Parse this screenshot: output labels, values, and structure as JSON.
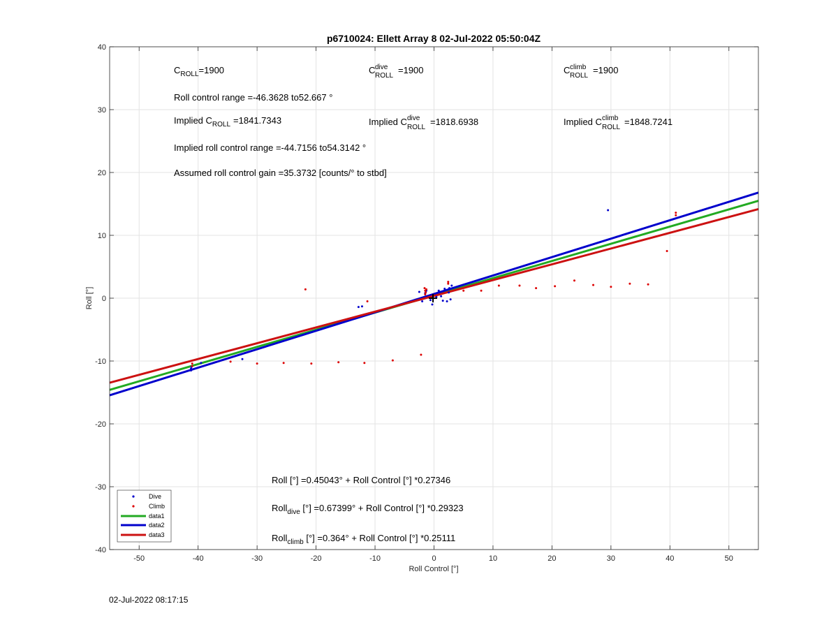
{
  "chart_data": {
    "type": "scatter",
    "title": "p6710024: Ellett Array 8 02-Jul-2022 05:50:04Z",
    "xlabel": "Roll Control [°]",
    "ylabel": "Roll [°]",
    "xlim": [
      -55,
      55
    ],
    "ylim": [
      -40,
      40
    ],
    "xticks": [
      -50,
      -40,
      -30,
      -20,
      -10,
      0,
      10,
      20,
      30,
      40,
      50
    ],
    "yticks": [
      -40,
      -30,
      -20,
      -10,
      0,
      10,
      20,
      30,
      40
    ],
    "grid": true,
    "legend_position": "bottom-left",
    "series": [
      {
        "name": "Dive",
        "kind": "scatter",
        "color": "#0000cc",
        "points": [
          [
            -41.2,
            -11.5
          ],
          [
            -41.2,
            -11.2
          ],
          [
            -41.1,
            -10.9
          ],
          [
            -41.1,
            -11.3
          ],
          [
            -39.5,
            -10.3
          ],
          [
            -32.5,
            -9.7
          ],
          [
            -12.8,
            -1.4
          ],
          [
            -12.2,
            -1.3
          ],
          [
            -2.5,
            1.0
          ],
          [
            -2.0,
            -0.5
          ],
          [
            -1.5,
            0.8
          ],
          [
            -1.3,
            1.2
          ],
          [
            -0.6,
            -0.3
          ],
          [
            -0.3,
            -1.0
          ],
          [
            0.4,
            0.2
          ],
          [
            0.8,
            1.2
          ],
          [
            1.2,
            0.3
          ],
          [
            1.5,
            -0.4
          ],
          [
            1.8,
            1.5
          ],
          [
            2.2,
            -0.5
          ],
          [
            2.5,
            0.9
          ],
          [
            2.6,
            1.6
          ],
          [
            3.0,
            2.0
          ],
          [
            2.8,
            -0.2
          ],
          [
            29.5,
            14.0
          ]
        ]
      },
      {
        "name": "Climb",
        "kind": "scatter",
        "color": "#dd0000",
        "points": [
          [
            -41.0,
            -10.4
          ],
          [
            -41.0,
            -10.8
          ],
          [
            -34.5,
            -10.1
          ],
          [
            -30.0,
            -10.4
          ],
          [
            -25.5,
            -10.3
          ],
          [
            -21.8,
            1.4
          ],
          [
            -20.8,
            -10.4
          ],
          [
            -16.2,
            -10.2
          ],
          [
            -11.8,
            -10.3
          ],
          [
            -11.3,
            -0.5
          ],
          [
            -7.0,
            -9.9
          ],
          [
            -2.2,
            -9.0
          ],
          [
            -1.6,
            1.6
          ],
          [
            -1.5,
            1.2
          ],
          [
            -1.4,
            0.9
          ],
          [
            -1.5,
            0.6
          ],
          [
            -1.3,
            1.4
          ],
          [
            2.4,
            2.3
          ],
          [
            2.4,
            2.6
          ],
          [
            5.0,
            1.2
          ],
          [
            8.0,
            1.2
          ],
          [
            11.0,
            2.0
          ],
          [
            14.5,
            2.0
          ],
          [
            17.3,
            1.6
          ],
          [
            20.5,
            1.9
          ],
          [
            23.8,
            2.8
          ],
          [
            27.0,
            2.1
          ],
          [
            30.0,
            1.8
          ],
          [
            33.2,
            2.3
          ],
          [
            36.3,
            2.2
          ],
          [
            39.5,
            7.5
          ],
          [
            41.0,
            13.2
          ],
          [
            41.0,
            13.6
          ]
        ]
      },
      {
        "name": "data1",
        "kind": "line",
        "color": "#22aa22",
        "intercept": 0.45043,
        "slope": 0.27346
      },
      {
        "name": "data2",
        "kind": "line",
        "color": "#0000cc",
        "intercept": 0.67399,
        "slope": 0.29323
      },
      {
        "name": "data3",
        "kind": "line",
        "color": "#cc1111",
        "intercept": 0.364,
        "slope": 0.25111
      }
    ],
    "annotations": {
      "c_roll": "C",
      "c_roll_sub": "ROLL",
      "c_roll_value": "=1900",
      "c_dive": "C",
      "c_dive_sup": "dive",
      "c_dive_sub": "ROLL",
      "c_dive_value": "=1900",
      "c_climb": "C",
      "c_climb_sup": "climb",
      "c_climb_sub": "ROLL",
      "c_climb_value": "=1900",
      "range": "Roll control range =-46.3628 to52.667 °",
      "implied_prefix": "Implied C",
      "implied_sub": "ROLL",
      "implied_value": "=1841.7343",
      "implied_dive_prefix": "Implied C",
      "implied_dive_sup": "dive",
      "implied_dive_sub": "ROLL",
      "implied_dive_value": "=1818.6938",
      "implied_climb_prefix": "Implied C",
      "implied_climb_sup": "climb",
      "implied_climb_sub": "ROLL",
      "implied_climb_value": "=1848.7241",
      "implied_range": "Implied roll control range =-44.7156 to54.3142 °",
      "gain": "Assumed roll control gain =35.3732 [counts/° to stbd]",
      "eq_all": "Roll [°] =0.45043° + Roll Control [°] *0.27346",
      "eq_dive_prefix": "Roll",
      "eq_dive_sub": "dive",
      "eq_dive_rest": " [°] =0.67399° + Roll Control [°] *0.29323",
      "eq_climb_prefix": "Roll",
      "eq_climb_sub": "climb",
      "eq_climb_rest": " [°] =0.364° + Roll Control [°] *0.25111"
    }
  },
  "footer": {
    "timestamp": "02-Jul-2022 08:17:15"
  }
}
